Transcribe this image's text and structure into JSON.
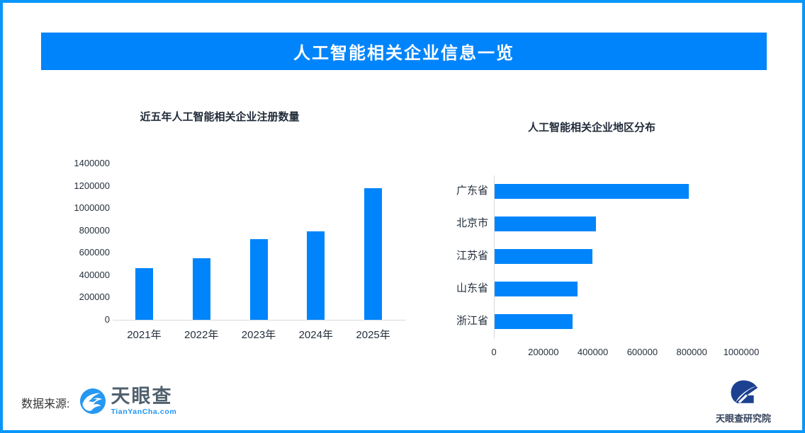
{
  "header": {
    "title": "人工智能相关企业信息一览"
  },
  "chart_data": [
    {
      "type": "bar",
      "orientation": "vertical",
      "title": "近五年人工智能相关企业注册数量",
      "categories": [
        "2021年",
        "2022年",
        "2023年",
        "2024年",
        "2025年"
      ],
      "values": [
        460000,
        550000,
        720000,
        790000,
        1180000
      ],
      "ylim": [
        0,
        1400000
      ],
      "ytick_step": 200000,
      "ytick_labels": [
        "0",
        "200000",
        "400000",
        "600000",
        "800000",
        "1000000",
        "1200000",
        "1400000"
      ],
      "bar_color": "#0084fb",
      "grid": false,
      "legend": null
    },
    {
      "type": "bar",
      "orientation": "horizontal",
      "title": "人工智能相关企业地区分布",
      "categories": [
        "广东省",
        "北京市",
        "江苏省",
        "山东省",
        "浙江省"
      ],
      "values": [
        785000,
        410000,
        395000,
        335000,
        315000
      ],
      "xlim": [
        0,
        1000000
      ],
      "xtick_step": 200000,
      "xtick_labels": [
        "0",
        "200000",
        "400000",
        "600000",
        "800000",
        "1000000"
      ],
      "bar_color": "#0084fb",
      "grid": false,
      "legend": null
    }
  ],
  "footer": {
    "source_label": "数据来源:",
    "tianyancha_name": "天眼查",
    "tianyancha_sub": "TianYanCha.com",
    "research_institute_name": "天眼查研究院"
  },
  "icons": {
    "tianyancha-logo-icon": "blue circle with white eye-like wave swirl",
    "research-institute-logo-icon": "navy swoosh circle with house silhouette"
  },
  "colors": {
    "frame_border": "#0996fb",
    "banner_bg": "#0084fb",
    "banner_text": "#ffffff",
    "bar": "#0084fb",
    "axis_text": "#26303d",
    "axis_line": "#d9d9d9",
    "tianyancha_blue": "#2598f1",
    "tianyancha_gray": "#50616e",
    "institute_navy": "#1d4191"
  }
}
